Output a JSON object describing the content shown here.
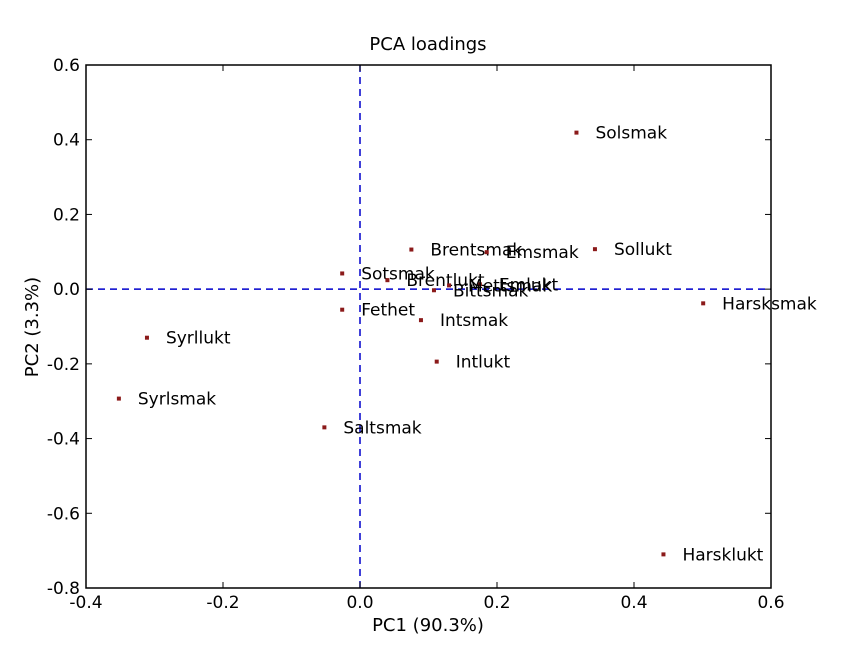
{
  "chart_data": {
    "type": "scatter",
    "title": "PCA loadings",
    "xlabel": "PC1 (90.3%)",
    "ylabel": "PC2 (3.3%)",
    "xlim": [
      -0.4,
      0.6
    ],
    "ylim": [
      -0.8,
      0.6
    ],
    "xticks": [
      "-0.4",
      "-0.2",
      "0.0",
      "0.2",
      "0.4",
      "0.6"
    ],
    "yticks": [
      "0.6",
      "0.4",
      "0.2",
      "0.0",
      "-0.2",
      "-0.4",
      "-0.6",
      "-0.8"
    ],
    "grid": false,
    "reference_lines": {
      "x": 0.0,
      "y": 0.0,
      "style": "dashed",
      "color": "#0000cc"
    },
    "marker_color": "#8b1a1a",
    "points": [
      {
        "label": "Solsmak",
        "x": 0.316,
        "y": 0.419
      },
      {
        "label": "Sollukt",
        "x": 0.343,
        "y": 0.107
      },
      {
        "label": "Brentsmak",
        "x": 0.075,
        "y": 0.106
      },
      {
        "label": "Emsmak",
        "x": 0.185,
        "y": 0.099
      },
      {
        "label": "Sotsmak",
        "x": -0.026,
        "y": 0.042
      },
      {
        "label": "Brentlukt",
        "x": 0.04,
        "y": 0.024
      },
      {
        "label": "Emlukt",
        "x": 0.175,
        "y": 0.013
      },
      {
        "label": "Mettsmak",
        "x": 0.13,
        "y": 0.01
      },
      {
        "label": "Bittsmak",
        "x": 0.108,
        "y": -0.003
      },
      {
        "label": "Harsksmak",
        "x": 0.501,
        "y": -0.038
      },
      {
        "label": "Fethet",
        "x": -0.026,
        "y": -0.055
      },
      {
        "label": "Intsmak",
        "x": 0.089,
        "y": -0.083
      },
      {
        "label": "Syrllukt",
        "x": -0.311,
        "y": -0.13
      },
      {
        "label": "Intlukt",
        "x": 0.112,
        "y": -0.194
      },
      {
        "label": "Syrlsmak",
        "x": -0.352,
        "y": -0.293
      },
      {
        "label": "Saltsmak",
        "x": -0.052,
        "y": -0.37
      },
      {
        "label": "Harsklukt",
        "x": 0.443,
        "y": -0.71
      }
    ]
  }
}
